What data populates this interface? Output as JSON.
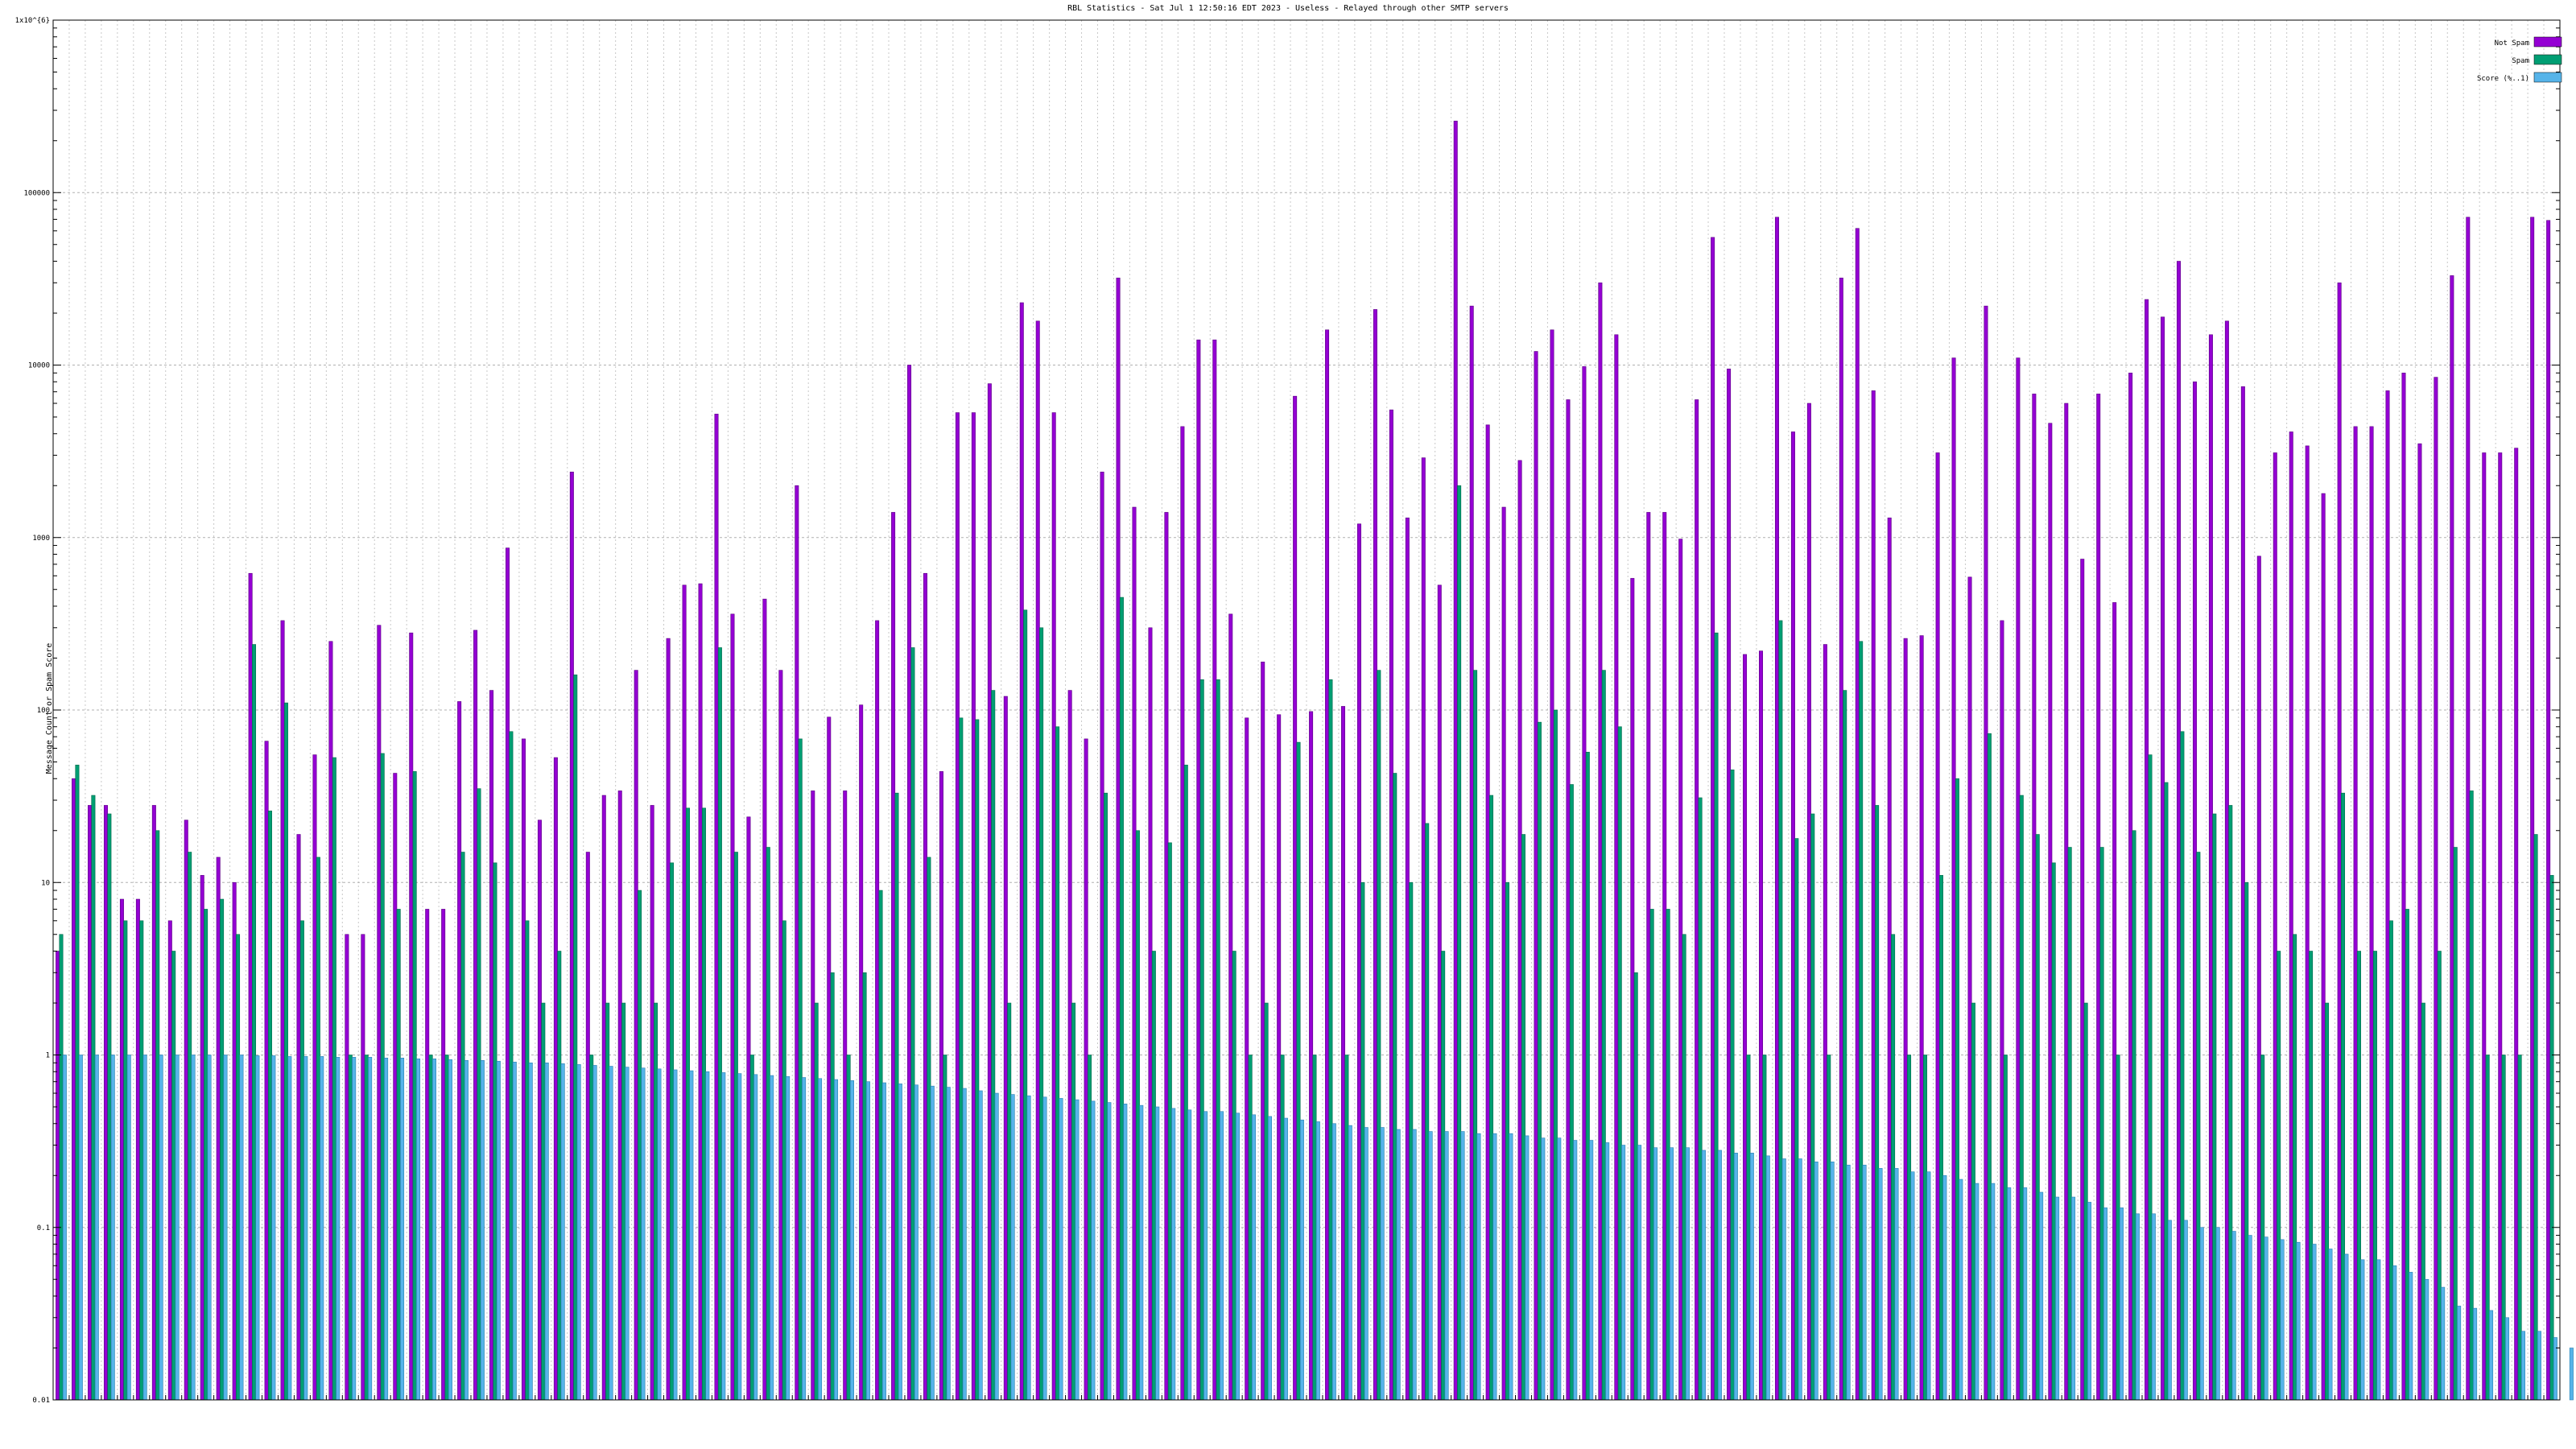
{
  "chart_data": {
    "type": "bar",
    "title": "RBL Statistics - Sat Jul  1 12:50:16 EDT 2023 - Useless - Relayed through other SMTP servers",
    "ylabel": "Message Count or Spam Score",
    "yscale": "log",
    "ylim": [
      0.01,
      1000000
    ],
    "ytick_labels": [
      "0.01",
      "0.1",
      "1",
      "10",
      "100",
      "1000",
      "10000",
      "100000",
      "1x10^{6}"
    ],
    "grid": true,
    "legend_position": "top-right",
    "colors": {
      "Not Spam": "#9400d3",
      "Spam": "#009e73",
      "Score (%..1)": "#56b4e9"
    },
    "series": [
      {
        "name": "Not Spam",
        "values": [
          4,
          40,
          28,
          28,
          8,
          8,
          28,
          6,
          23,
          11,
          14,
          10,
          620,
          66,
          330,
          19,
          55,
          250,
          5,
          5,
          310,
          43,
          280,
          7,
          7,
          112,
          290,
          130,
          870,
          68,
          23,
          53,
          2400,
          15,
          32,
          34,
          170,
          28,
          260,
          530,
          540,
          5200,
          360,
          24,
          440,
          170,
          2000,
          34,
          91,
          34,
          107,
          330,
          1400,
          10000,
          620,
          44,
          5300,
          5300,
          7800,
          120,
          23000,
          18000,
          5300,
          130,
          68,
          2400,
          32000,
          1500,
          300,
          1400,
          4400,
          14000,
          14000,
          360,
          90,
          190,
          94,
          6600,
          98,
          16000,
          105,
          1200,
          21000,
          5500,
          1300,
          2900,
          530,
          260000,
          22000,
          4500,
          1500,
          2800,
          12000,
          16000,
          6300,
          9800,
          30000,
          15000,
          580,
          1400,
          1400,
          980,
          6300,
          55000,
          9500,
          210,
          220,
          72000,
          4100,
          6000,
          240,
          32000,
          62000,
          7100,
          1300,
          260,
          270,
          3100,
          11000,
          590,
          22000,
          330,
          11000,
          6800,
          4600,
          6000,
          750,
          6800,
          420,
          9000,
          24000,
          19000,
          40000,
          8000,
          15000,
          18000,
          7500,
          780,
          3100,
          4100,
          3400,
          1800,
          30000,
          4400,
          4400,
          7100,
          9000,
          3500,
          8500,
          33000,
          72000,
          3100,
          3100,
          3300,
          72000,
          69000
        ]
      },
      {
        "name": "Spam",
        "values": [
          5,
          48,
          32,
          25,
          6,
          6,
          20,
          4,
          15,
          7,
          8,
          5,
          240,
          26,
          110,
          6,
          14,
          53,
          1,
          1,
          56,
          7,
          44,
          1,
          1,
          15,
          35,
          13,
          75,
          6,
          2,
          4,
          160,
          1,
          2,
          2,
          9,
          2,
          13,
          27,
          27,
          230,
          15,
          1,
          16,
          6,
          68,
          2,
          3,
          1,
          3,
          9,
          33,
          230,
          14,
          1,
          90,
          88,
          130,
          2,
          380,
          300,
          80,
          2,
          1,
          33,
          450,
          20,
          4,
          17,
          48,
          150,
          150,
          4,
          1,
          2,
          1,
          65,
          1,
          150,
          1,
          10,
          170,
          43,
          10,
          22,
          4,
          2000,
          170,
          32,
          10,
          19,
          85,
          100,
          37,
          57,
          170,
          80,
          3,
          7,
          7,
          5,
          31,
          280,
          45,
          1,
          1,
          330,
          18,
          25,
          1,
          130,
          250,
          28,
          5,
          1,
          1,
          11,
          40,
          2,
          73,
          1,
          32,
          19,
          13,
          16,
          2,
          16,
          1,
          20,
          55,
          38,
          75,
          15,
          25,
          28,
          10,
          1,
          4,
          5,
          4,
          2,
          33,
          4,
          4,
          6,
          7,
          2,
          4,
          16,
          34,
          1,
          1,
          1,
          19,
          11
        ]
      },
      {
        "name": "Score (%..1)",
        "values": [
          1,
          1,
          1,
          1,
          1,
          1,
          1,
          1,
          1,
          1,
          1,
          1,
          0.99,
          0.99,
          0.98,
          0.98,
          0.98,
          0.97,
          0.97,
          0.97,
          0.96,
          0.96,
          0.95,
          0.95,
          0.94,
          0.93,
          0.93,
          0.92,
          0.91,
          0.9,
          0.9,
          0.89,
          0.88,
          0.87,
          0.86,
          0.85,
          0.84,
          0.83,
          0.82,
          0.81,
          0.8,
          0.79,
          0.78,
          0.77,
          0.76,
          0.75,
          0.74,
          0.73,
          0.72,
          0.71,
          0.7,
          0.69,
          0.68,
          0.67,
          0.66,
          0.65,
          0.64,
          0.62,
          0.6,
          0.59,
          0.58,
          0.57,
          0.56,
          0.55,
          0.54,
          0.53,
          0.52,
          0.51,
          0.5,
          0.49,
          0.48,
          0.47,
          0.47,
          0.46,
          0.45,
          0.44,
          0.43,
          0.42,
          0.41,
          0.4,
          0.39,
          0.38,
          0.38,
          0.37,
          0.37,
          0.36,
          0.36,
          0.36,
          0.35,
          0.35,
          0.35,
          0.34,
          0.33,
          0.33,
          0.32,
          0.32,
          0.31,
          0.3,
          0.3,
          0.29,
          0.29,
          0.29,
          0.28,
          0.28,
          0.27,
          0.27,
          0.26,
          0.25,
          0.25,
          0.24,
          0.24,
          0.23,
          0.23,
          0.22,
          0.22,
          0.21,
          0.21,
          0.2,
          0.19,
          0.18,
          0.18,
          0.17,
          0.17,
          0.16,
          0.15,
          0.15,
          0.14,
          0.13,
          0.13,
          0.12,
          0.12,
          0.11,
          0.11,
          0.1,
          0.1,
          0.095,
          0.09,
          0.088,
          0.085,
          0.082,
          0.08,
          0.075,
          0.07,
          0.065,
          0.065,
          0.06,
          0.055,
          0.05,
          0.045,
          0.035,
          0.034,
          0.033,
          0.03,
          0.025,
          0.025,
          0.023,
          0.02
        ]
      }
    ]
  }
}
